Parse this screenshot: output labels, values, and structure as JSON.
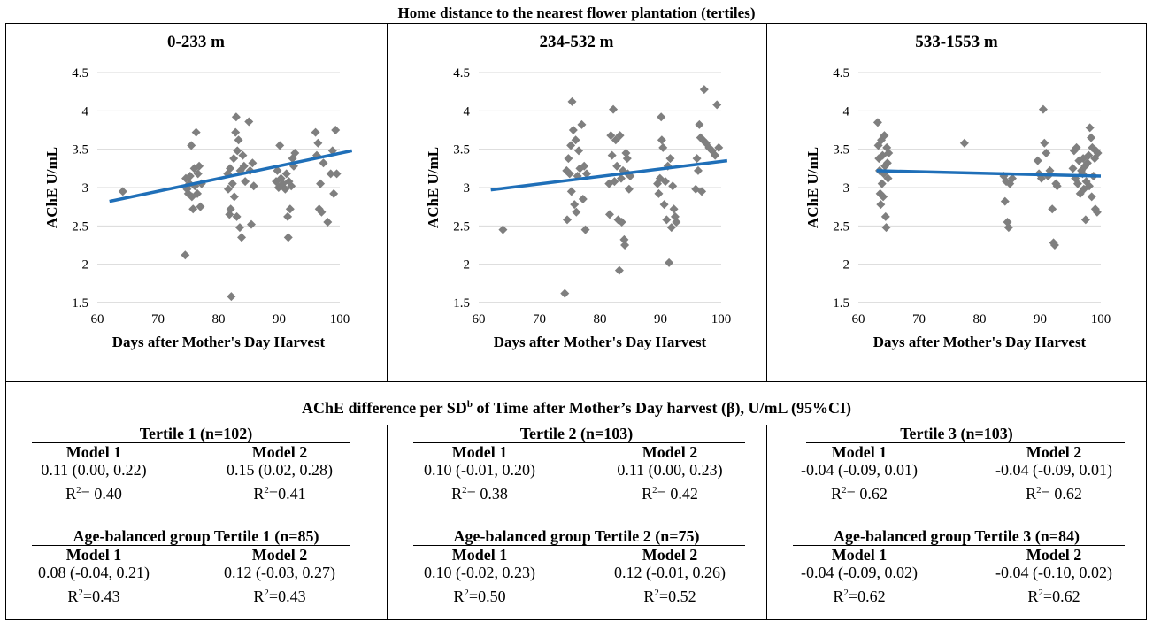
{
  "figure_title": "Home distance to the nearest flower plantation (tertiles)",
  "chart_data": [
    {
      "type": "scatter",
      "title": "0-233 m",
      "xlabel": "Days after Mother's Day Harvest",
      "ylabel": "AChE U/mL",
      "xlim": [
        60,
        100
      ],
      "ylim": [
        1.5,
        4.5
      ],
      "xticks": [
        "60",
        "70",
        "80",
        "90",
        "100"
      ],
      "yticks": [
        "1.5",
        "2",
        "2.5",
        "3",
        "3.5",
        "4",
        "4.5"
      ],
      "grid": true,
      "marker_color": "#7f7f7f",
      "trend_color": "#1f6fb8",
      "trend": {
        "x": [
          62,
          102
        ],
        "y": [
          2.82,
          3.48
        ]
      },
      "points": [
        [
          64.2,
          2.95
        ],
        [
          74.5,
          2.12
        ],
        [
          74.6,
          3.12
        ],
        [
          74.8,
          2.98
        ],
        [
          75.0,
          2.92
        ],
        [
          75.2,
          3.05
        ],
        [
          75.3,
          3.15
        ],
        [
          75.5,
          3.55
        ],
        [
          75.6,
          2.88
        ],
        [
          75.8,
          2.72
        ],
        [
          76.0,
          3.25
        ],
        [
          76.1,
          3.02
        ],
        [
          76.3,
          3.72
        ],
        [
          76.5,
          2.92
        ],
        [
          76.6,
          3.18
        ],
        [
          76.8,
          3.28
        ],
        [
          77.0,
          2.75
        ],
        [
          77.2,
          3.05
        ],
        [
          81.5,
          3.18
        ],
        [
          81.6,
          2.98
        ],
        [
          81.8,
          2.65
        ],
        [
          81.9,
          3.25
        ],
        [
          82.0,
          2.72
        ],
        [
          82.1,
          1.58
        ],
        [
          82.3,
          3.05
        ],
        [
          82.5,
          3.38
        ],
        [
          82.6,
          2.88
        ],
        [
          82.8,
          3.72
        ],
        [
          82.9,
          3.92
        ],
        [
          83.0,
          2.62
        ],
        [
          83.1,
          3.48
        ],
        [
          83.3,
          3.62
        ],
        [
          83.5,
          2.48
        ],
        [
          83.6,
          3.22
        ],
        [
          83.8,
          2.35
        ],
        [
          84.0,
          3.42
        ],
        [
          84.2,
          3.28
        ],
        [
          84.4,
          3.08
        ],
        [
          85.0,
          3.86
        ],
        [
          85.2,
          3.22
        ],
        [
          85.4,
          2.52
        ],
        [
          85.6,
          3.32
        ],
        [
          85.8,
          3.02
        ],
        [
          89.5,
          3.08
        ],
        [
          89.7,
          3.22
        ],
        [
          89.9,
          3.0
        ],
        [
          90.1,
          3.55
        ],
        [
          90.3,
          3.12
        ],
        [
          90.6,
          3.05
        ],
        [
          91.0,
          2.98
        ],
        [
          91.2,
          3.18
        ],
        [
          91.4,
          2.62
        ],
        [
          91.5,
          2.35
        ],
        [
          91.6,
          3.08
        ],
        [
          91.8,
          2.72
        ],
        [
          92.0,
          3.02
        ],
        [
          92.2,
          3.38
        ],
        [
          92.4,
          3.28
        ],
        [
          92.6,
          3.45
        ],
        [
          96.0,
          3.72
        ],
        [
          96.2,
          3.42
        ],
        [
          96.4,
          3.58
        ],
        [
          96.6,
          2.72
        ],
        [
          96.8,
          3.05
        ],
        [
          97.0,
          2.68
        ],
        [
          97.3,
          3.32
        ],
        [
          98.0,
          2.55
        ],
        [
          98.5,
          3.18
        ],
        [
          98.8,
          3.48
        ],
        [
          99.0,
          2.92
        ],
        [
          99.3,
          3.75
        ],
        [
          99.5,
          3.18
        ]
      ]
    },
    {
      "type": "scatter",
      "title": "234-532 m",
      "xlabel": "Days after Mother's Day Harvest",
      "ylabel": "AChE U/mL",
      "xlim": [
        60,
        100
      ],
      "ylim": [
        1.5,
        4.5
      ],
      "xticks": [
        "60",
        "70",
        "80",
        "90",
        "100"
      ],
      "yticks": [
        "1.5",
        "2",
        "2.5",
        "3",
        "3.5",
        "4",
        "4.5"
      ],
      "grid": true,
      "marker_color": "#7f7f7f",
      "trend_color": "#1f6fb8",
      "trend": {
        "x": [
          62,
          101
        ],
        "y": [
          2.97,
          3.35
        ]
      },
      "points": [
        [
          64.0,
          2.45
        ],
        [
          74.2,
          1.62
        ],
        [
          74.5,
          3.22
        ],
        [
          74.6,
          2.58
        ],
        [
          74.8,
          3.38
        ],
        [
          75.0,
          3.18
        ],
        [
          75.2,
          3.55
        ],
        [
          75.3,
          2.95
        ],
        [
          75.4,
          4.12
        ],
        [
          75.6,
          3.75
        ],
        [
          75.8,
          2.78
        ],
        [
          76.0,
          3.62
        ],
        [
          76.1,
          2.68
        ],
        [
          76.3,
          3.15
        ],
        [
          76.5,
          3.48
        ],
        [
          76.7,
          3.25
        ],
        [
          77.0,
          3.82
        ],
        [
          77.2,
          2.85
        ],
        [
          77.4,
          3.28
        ],
        [
          77.6,
          2.45
        ],
        [
          77.8,
          3.18
        ],
        [
          81.5,
          3.05
        ],
        [
          81.6,
          2.65
        ],
        [
          81.8,
          3.68
        ],
        [
          82.0,
          3.42
        ],
        [
          82.2,
          4.02
        ],
        [
          82.4,
          3.08
        ],
        [
          82.6,
          3.62
        ],
        [
          82.8,
          3.28
        ],
        [
          83.0,
          2.58
        ],
        [
          83.2,
          1.92
        ],
        [
          83.3,
          3.68
        ],
        [
          83.5,
          3.12
        ],
        [
          83.6,
          2.55
        ],
        [
          83.8,
          3.22
        ],
        [
          84.0,
          2.32
        ],
        [
          84.1,
          2.25
        ],
        [
          84.3,
          3.45
        ],
        [
          84.5,
          3.38
        ],
        [
          84.6,
          3.18
        ],
        [
          84.8,
          2.98
        ],
        [
          85.0,
          3.15
        ],
        [
          89.5,
          3.05
        ],
        [
          89.7,
          2.92
        ],
        [
          89.9,
          3.12
        ],
        [
          90.1,
          3.92
        ],
        [
          90.2,
          3.62
        ],
        [
          90.4,
          3.52
        ],
        [
          90.6,
          2.78
        ],
        [
          90.8,
          3.08
        ],
        [
          91.0,
          2.58
        ],
        [
          91.2,
          3.28
        ],
        [
          91.4,
          2.02
        ],
        [
          91.6,
          3.38
        ],
        [
          91.8,
          2.48
        ],
        [
          92.0,
          3.02
        ],
        [
          92.2,
          2.72
        ],
        [
          92.4,
          2.62
        ],
        [
          92.6,
          2.55
        ],
        [
          95.8,
          2.98
        ],
        [
          96.0,
          3.38
        ],
        [
          96.2,
          3.22
        ],
        [
          96.4,
          3.82
        ],
        [
          96.6,
          3.65
        ],
        [
          96.8,
          2.95
        ],
        [
          97.0,
          3.62
        ],
        [
          97.2,
          4.28
        ],
        [
          97.5,
          3.58
        ],
        [
          98.0,
          3.52
        ],
        [
          98.5,
          3.48
        ],
        [
          99.0,
          3.42
        ],
        [
          99.3,
          4.08
        ],
        [
          99.6,
          3.52
        ]
      ]
    },
    {
      "type": "scatter",
      "title": "533-1553 m",
      "xlabel": "Days after Mother's Day Harvest",
      "ylabel": "AChE U/mL",
      "xlim": [
        60,
        100
      ],
      "ylim": [
        1.5,
        4.5
      ],
      "xticks": [
        "60",
        "70",
        "80",
        "90",
        "100"
      ],
      "yticks": [
        "1.5",
        "2",
        "2.5",
        "3",
        "3.5",
        "4",
        "4.5"
      ],
      "grid": true,
      "marker_color": "#7f7f7f",
      "trend_color": "#1f6fb8",
      "trend": {
        "x": [
          63,
          100
        ],
        "y": [
          3.22,
          3.15
        ]
      },
      "points": [
        [
          63.2,
          3.85
        ],
        [
          63.3,
          3.55
        ],
        [
          63.4,
          3.38
        ],
        [
          63.5,
          3.22
        ],
        [
          63.6,
          2.92
        ],
        [
          63.7,
          2.78
        ],
        [
          63.8,
          3.62
        ],
        [
          63.9,
          3.05
        ],
        [
          64.0,
          3.42
        ],
        [
          64.1,
          2.88
        ],
        [
          64.2,
          3.18
        ],
        [
          64.3,
          3.68
        ],
        [
          64.4,
          3.28
        ],
        [
          64.5,
          2.62
        ],
        [
          64.6,
          2.48
        ],
        [
          64.7,
          3.52
        ],
        [
          64.8,
          3.32
        ],
        [
          64.9,
          3.12
        ],
        [
          65.0,
          3.45
        ],
        [
          77.5,
          3.58
        ],
        [
          84.0,
          3.15
        ],
        [
          84.2,
          2.82
        ],
        [
          84.4,
          3.08
        ],
        [
          84.6,
          2.55
        ],
        [
          84.8,
          2.48
        ],
        [
          85.0,
          3.05
        ],
        [
          85.4,
          3.12
        ],
        [
          89.6,
          3.35
        ],
        [
          89.8,
          3.18
        ],
        [
          90.2,
          3.12
        ],
        [
          90.5,
          4.02
        ],
        [
          90.7,
          3.58
        ],
        [
          91.0,
          3.45
        ],
        [
          91.3,
          3.15
        ],
        [
          91.6,
          3.22
        ],
        [
          92.0,
          2.72
        ],
        [
          92.2,
          2.28
        ],
        [
          92.4,
          2.25
        ],
        [
          92.6,
          3.05
        ],
        [
          92.8,
          3.02
        ],
        [
          95.4,
          3.25
        ],
        [
          95.6,
          3.48
        ],
        [
          95.8,
          3.12
        ],
        [
          96.0,
          3.52
        ],
        [
          96.2,
          3.05
        ],
        [
          96.4,
          3.35
        ],
        [
          96.6,
          2.92
        ],
        [
          96.8,
          3.22
        ],
        [
          97.0,
          3.18
        ],
        [
          97.1,
          3.38
        ],
        [
          97.2,
          2.98
        ],
        [
          97.4,
          3.28
        ],
        [
          97.5,
          2.58
        ],
        [
          97.6,
          3.08
        ],
        [
          97.8,
          3.32
        ],
        [
          98.0,
          3.42
        ],
        [
          98.1,
          3.02
        ],
        [
          98.2,
          3.78
        ],
        [
          98.4,
          3.65
        ],
        [
          98.5,
          2.88
        ],
        [
          98.6,
          3.52
        ],
        [
          98.8,
          3.15
        ],
        [
          99.0,
          3.38
        ],
        [
          99.1,
          2.72
        ],
        [
          99.2,
          3.48
        ],
        [
          99.4,
          2.68
        ],
        [
          99.5,
          3.45
        ]
      ]
    }
  ],
  "stats": {
    "title_main": "AChE difference per SD",
    "title_sup": "b",
    "title_rest": " of Time after Mother’s Day harvest (β), U/mL (95%CI)",
    "groups": [
      {
        "tertile_header": "Tertile 1 (n=102)",
        "model1": {
          "label": "Model 1",
          "value": "0.11 (0.00, 0.22)",
          "r2": "= 0.40"
        },
        "model2": {
          "label": "Model 2",
          "value": "0.15 (0.02, 0.28)",
          "r2": "=0.41"
        },
        "age_header": "Age-balanced group Tertile 1 (n=85)",
        "age_model1": {
          "label": "Model 1",
          "value": "0.08 (-0.04, 0.21)",
          "r2": "=0.43"
        },
        "age_model2": {
          "label": "Model 2",
          "value": "0.12 (-0.03, 0.27)",
          "r2": "=0.43"
        }
      },
      {
        "tertile_header": "Tertile 2 (n=103)",
        "model1": {
          "label": "Model 1",
          "value": "0.10 (-0.01, 0.20)",
          "r2": "= 0.38"
        },
        "model2": {
          "label": "Model 2",
          "value": "0.11 (0.00, 0.23)",
          "r2": "= 0.42"
        },
        "age_header": "Age-balanced group Tertile 2 (n=75)",
        "age_model1": {
          "label": "Model 1",
          "value": "0.10 (-0.02, 0.23)",
          "r2": "=0.50"
        },
        "age_model2": {
          "label": "Model 2",
          "value": "0.12 (-0.01, 0.26)",
          "r2": "=0.52"
        }
      },
      {
        "tertile_header": "Tertile 3 (n=103)",
        "model1": {
          "label": "Model 1",
          "value": "-0.04 (-0.09, 0.01)",
          "r2": "= 0.62"
        },
        "model2": {
          "label": "Model 2",
          "value": "-0.04 (-0.09, 0.01)",
          "r2": "= 0.62"
        },
        "age_header": "Age-balanced group Tertile 3 (n=84)",
        "age_model1": {
          "label": "Model 1",
          "value": "-0.04 (-0.09, 0.02)",
          "r2": "=0.62"
        },
        "age_model2": {
          "label": "Model 2",
          "value": "-0.04 (-0.10, 0.02)",
          "r2": "=0.62"
        }
      }
    ]
  }
}
